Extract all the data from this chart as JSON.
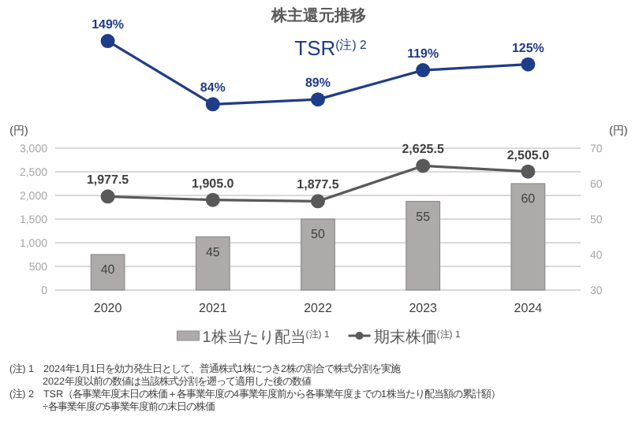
{
  "chart_data": [
    {
      "type": "line",
      "title": "株主還元推移",
      "categories": [
        null,
        null,
        null,
        null,
        null
      ],
      "marker": "circle",
      "data_labels": true,
      "series": [
        {
          "name": "TSR$^{(注) 2}$",
          "color": "#1f3c88",
          "values": [
            149,
            84,
            89,
            119,
            125
          ],
          "value_labels": [
            "149%",
            "84%",
            "89%",
            "119%",
            "125%"
          ]
        }
      ]
    },
    {
      "type": "bar",
      "categories": [
        "2020",
        "2021",
        "2022",
        "2023",
        "2024"
      ],
      "ylabel": "(円)",
      "y2label": "(円)",
      "ylim": [
        0,
        3000
      ],
      "yticks": [
        0,
        500,
        {
          "value": 1000,
          "label": "1,000"
        },
        {
          "value": 1500,
          "label": "1,500"
        },
        {
          "value": 2000,
          "label": "2,000"
        },
        {
          "value": 2500,
          "label": "2,500"
        },
        {
          "value": 3000,
          "label": "3,000"
        }
      ],
      "y2lim": [
        30,
        70
      ],
      "y2ticks": [
        30,
        40,
        50,
        60,
        70
      ],
      "grid": "y",
      "legend": "bottom",
      "marker": "circle",
      "data_labels": true,
      "series": [
        {
          "name": "1株当たり配当$^{(注) 1}$",
          "axis": "y2",
          "color": "#aeaaaa",
          "values": [
            40,
            45,
            50,
            55,
            60
          ]
        },
        {
          "name": "期末株価$^{(注) 1}$",
          "type": "line",
          "color": "#595959",
          "values": [
            1977.5,
            1905,
            1877.5,
            2625.5,
            2505
          ],
          "value_labels": [
            "1,977.5",
            "1,905.0",
            "1,877.5",
            "2,625.5",
            "2,505.0"
          ]
        }
      ],
      "annotations": [
        "(注) 1　2024年1月1日を効力発生日として、普通株式1株につき2株の割合で株式分割を実施\n2022年度以前の数値は当該株式分割を遡って適用した後の数値",
        "(注) 2　TSR（各事業年度末日の株価＋各事業年度の4事業年度前から各事業年度までの1株当たり配当額の累計額）\n÷各事業年度の5事業年度前の末日の株価"
      ]
    }
  ]
}
